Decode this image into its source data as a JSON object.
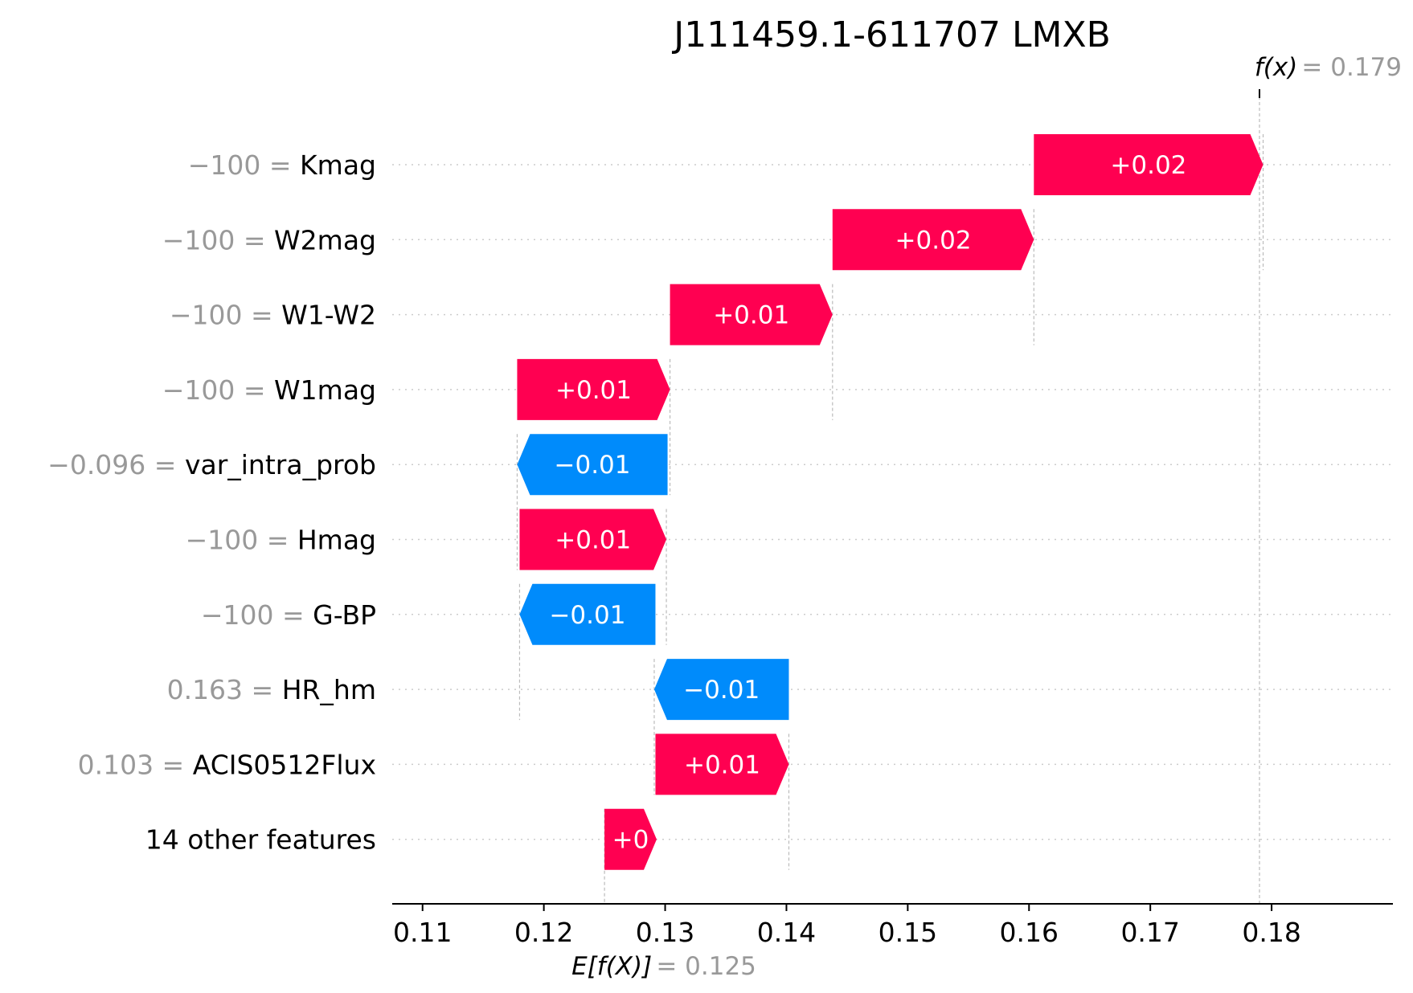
{
  "chart_data": {
    "type": "waterfall",
    "title": "J111459.1-611707 LMXB",
    "base_value": 0.125,
    "base_value_label": "0.125",
    "output_value": 0.179,
    "output_value_label": "0.179",
    "fx_label": "f(x)",
    "ex_label": "E[f(X)]",
    "xlim": [
      0.1075,
      0.19
    ],
    "xticks": [
      0.11,
      0.12,
      0.13,
      0.14,
      0.15,
      0.16,
      0.17,
      0.18
    ],
    "xtick_labels": [
      "0.11",
      "0.12",
      "0.13",
      "0.14",
      "0.15",
      "0.16",
      "0.17",
      "0.18"
    ],
    "grid": "dotted horizontal row guides",
    "colors": {
      "positive": "#ff0051",
      "negative": "#008bfb",
      "value_text": "#999999",
      "guide": "#bbbbbb",
      "axis": "#000000"
    },
    "features": [
      {
        "name": "Kmag",
        "value_text": "−100",
        "start": 0.1604,
        "end": 0.1793,
        "label": "+0.02",
        "sign": "positive"
      },
      {
        "name": "W2mag",
        "value_text": "−100",
        "start": 0.1438,
        "end": 0.1604,
        "label": "+0.02",
        "sign": "positive"
      },
      {
        "name": "W1-W2",
        "value_text": "−100",
        "start": 0.1304,
        "end": 0.1438,
        "label": "+0.01",
        "sign": "positive"
      },
      {
        "name": "W1mag",
        "value_text": "−100",
        "start": 0.1178,
        "end": 0.1304,
        "label": "+0.01",
        "sign": "positive"
      },
      {
        "name": "var_intra_prob",
        "value_text": "−0.096",
        "start": 0.1302,
        "end": 0.1178,
        "label": "−0.01",
        "sign": "negative"
      },
      {
        "name": "Hmag",
        "value_text": "−100",
        "start": 0.118,
        "end": 0.1301,
        "label": "+0.01",
        "sign": "positive"
      },
      {
        "name": "G-BP",
        "value_text": "−100",
        "start": 0.1292,
        "end": 0.118,
        "label": "−0.01",
        "sign": "negative"
      },
      {
        "name": "HR_hm",
        "value_text": "0.163",
        "start": 0.1402,
        "end": 0.1291,
        "label": "−0.01",
        "sign": "negative"
      },
      {
        "name": "ACIS0512Flux",
        "value_text": "0.103",
        "start": 0.1292,
        "end": 0.1402,
        "label": "+0.01",
        "sign": "positive"
      },
      {
        "name": "14 other features",
        "value_text": "",
        "start": 0.125,
        "end": 0.1293,
        "label": "+0",
        "sign": "positive"
      }
    ]
  }
}
